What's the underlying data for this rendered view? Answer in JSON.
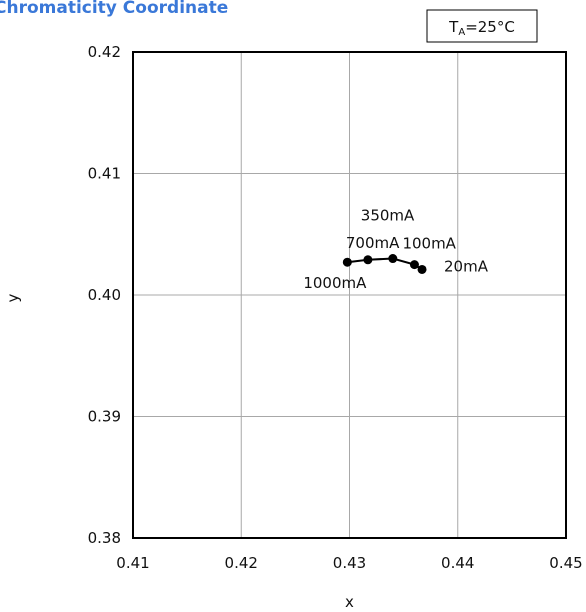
{
  "chart_data": {
    "type": "line",
    "title": "Chromaticity Coordinate",
    "xlabel": "x",
    "ylabel": "y",
    "xlim": [
      0.41,
      0.45
    ],
    "ylim": [
      0.38,
      0.42
    ],
    "x_ticks": [
      "0.41",
      "0.42",
      "0.43",
      "0.44",
      "0.45"
    ],
    "y_ticks": [
      "0.38",
      "0.39",
      "0.40",
      "0.41",
      "0.42"
    ],
    "grid": true,
    "condition": {
      "symbol": "T",
      "subscript": "A",
      "value": "=25°C"
    },
    "series": [
      {
        "points": [
          {
            "x": 0.4367,
            "y": 0.4021,
            "label": "20mA"
          },
          {
            "x": 0.436,
            "y": 0.4025,
            "label": "100mA"
          },
          {
            "x": 0.434,
            "y": 0.403,
            "label": "350mA"
          },
          {
            "x": 0.4317,
            "y": 0.4029,
            "label": "700mA"
          },
          {
            "x": 0.4298,
            "y": 0.4027,
            "label": "1000mA"
          }
        ]
      }
    ]
  }
}
